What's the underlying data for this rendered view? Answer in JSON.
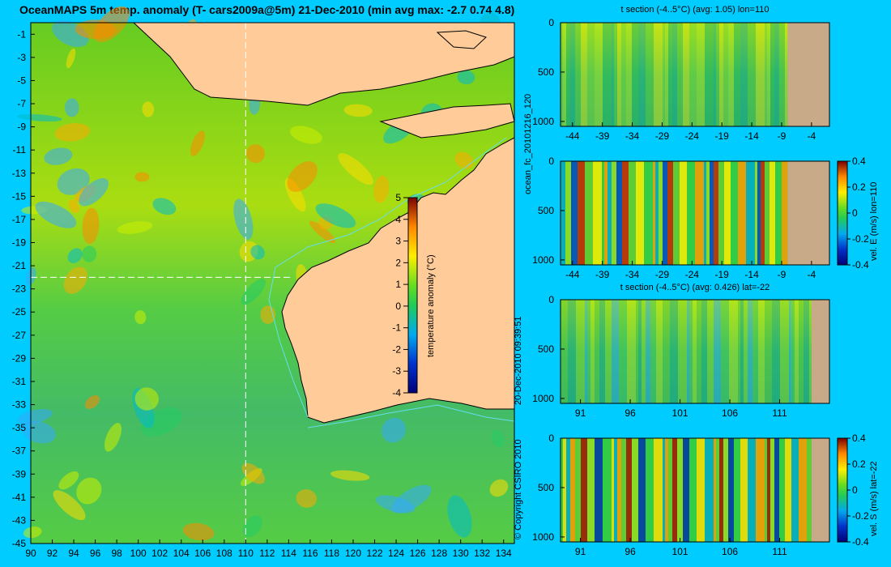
{
  "title": "OceanMAPS 5m temp. anomaly (T- cars2009a@5m) 21-Dec-2010 (min avg max: -2.7 0.74 4.8)",
  "run_label": "ocean_fc_20101216_120",
  "timestamp_label": "20-Dec-2010 09:39:51",
  "copyright": "© Copyright CSIRO 2010",
  "colors": {
    "background": "#00ccff",
    "land": "#ffcc99",
    "section_land": "#c8aa88",
    "contour": "#66ddee",
    "crosshair": "#ffffff"
  },
  "chart_data": [
    {
      "type": "heatmap",
      "name": "map",
      "x": {
        "ticks": [
          90,
          92,
          94,
          96,
          98,
          100,
          102,
          104,
          106,
          108,
          110,
          112,
          114,
          116,
          118,
          120,
          122,
          124,
          126,
          128,
          130,
          132,
          134
        ],
        "lim": [
          90,
          135
        ]
      },
      "y": {
        "ticks": [
          -1,
          -3,
          -5,
          -7,
          -9,
          -11,
          -13,
          -15,
          -17,
          -19,
          -21,
          -23,
          -25,
          -27,
          -29,
          -31,
          -33,
          -35,
          -37,
          -39,
          -41,
          -43,
          -45
        ],
        "lim": [
          -45,
          0
        ]
      },
      "crosshair": {
        "lon": 110,
        "lat": -22
      },
      "colorbar": {
        "label": "temperature anomaly (°C)",
        "ticks": [
          5,
          4,
          3,
          2,
          1,
          0,
          -1,
          -2,
          -3,
          -4
        ],
        "range": [
          -4,
          5
        ]
      },
      "stats": {
        "min": -2.7,
        "avg": 0.74,
        "max": 4.8
      }
    },
    {
      "type": "heatmap",
      "name": "t-section-lon",
      "title": "t section (-4..5°C) (avg: 1.05) lon=110",
      "x": {
        "ticks": [
          -44,
          -39,
          -34,
          -29,
          -24,
          -19,
          -14,
          -9,
          -4
        ],
        "lim": [
          -46,
          -1
        ]
      },
      "y": {
        "ticks": [
          0,
          500,
          1000
        ],
        "lim": [
          0,
          1050
        ]
      },
      "land_from": -8
    },
    {
      "type": "heatmap",
      "name": "vel-e-section",
      "x": {
        "ticks": [
          -44,
          -39,
          -34,
          -29,
          -24,
          -19,
          -14,
          -9,
          -4
        ],
        "lim": [
          -46,
          -1
        ]
      },
      "y": {
        "ticks": [
          0,
          500,
          1000
        ],
        "lim": [
          0,
          1050
        ]
      },
      "land_from": -8,
      "colorbar": {
        "label": "vel. E (m/s) lon=110",
        "ticks": [
          "0.4",
          "0.2",
          "0",
          "-0.2",
          "-0.4"
        ],
        "range": [
          -0.4,
          0.4
        ]
      }
    },
    {
      "type": "heatmap",
      "name": "t-section-lat",
      "title": "t section (-4..5°C) (avg: 0.426) lat=-22",
      "x": {
        "ticks": [
          91,
          96,
          101,
          106,
          111
        ],
        "lim": [
          89,
          116
        ]
      },
      "y": {
        "ticks": [
          0,
          500,
          1000
        ],
        "lim": [
          0,
          1050
        ]
      },
      "land_from": 114.2
    },
    {
      "type": "heatmap",
      "name": "vel-s-section",
      "x": {
        "ticks": [
          91,
          96,
          101,
          106,
          111
        ],
        "lim": [
          89,
          116
        ]
      },
      "y": {
        "ticks": [
          0,
          500,
          1000
        ],
        "lim": [
          0,
          1050
        ]
      },
      "land_from": 114.2,
      "colorbar": {
        "label": "vel. S (m/s) lat=-22",
        "ticks": [
          "0.4",
          "0.2",
          "0",
          "-0.2",
          "-0.4"
        ],
        "range": [
          -0.4,
          0.4
        ]
      }
    }
  ]
}
